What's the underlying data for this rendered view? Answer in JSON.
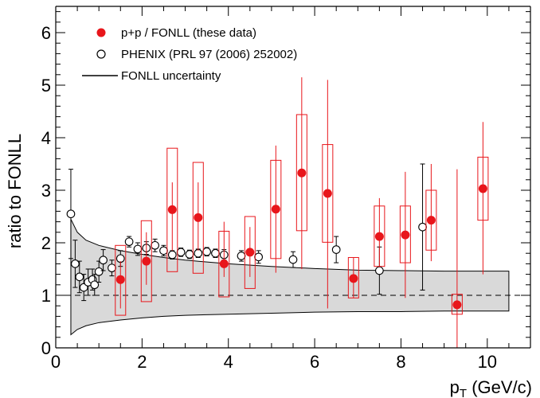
{
  "chart_data": {
    "type": "scatter",
    "xlabel": {
      "main": "p",
      "sub": "T",
      "rest": " (GeV/c)"
    },
    "ylabel": "ratio to FONLL",
    "xlim": [
      0,
      11
    ],
    "ylim": [
      0,
      6.5
    ],
    "x_ticks": [
      "0",
      "2",
      "4",
      "6",
      "8",
      "10"
    ],
    "y_ticks": [
      "0",
      "1",
      "2",
      "3",
      "4",
      "5",
      "6"
    ],
    "reference_line_y": 1,
    "colors": {
      "data": "#e8161b",
      "phenix": "#000000",
      "band": "#d9d9d9",
      "box": "#e8161b"
    },
    "legend": {
      "position": "top-left",
      "entries": [
        {
          "label": "p+p / FONLL (these data)",
          "marker": "filled-circle-red"
        },
        {
          "label": "PHENIX (PRL 97 (2006) 252002)",
          "marker": "open-circle-black"
        },
        {
          "label": "FONLL uncertainty",
          "marker": "line-black"
        }
      ]
    },
    "band": {
      "x": [
        0.35,
        0.5,
        0.7,
        1.0,
        1.5,
        2.0,
        2.5,
        3.0,
        4.0,
        5.0,
        6.0,
        7.0,
        8.0,
        9.0,
        10.5
      ],
      "upper": [
        2.45,
        2.2,
        2.05,
        1.95,
        1.85,
        1.78,
        1.72,
        1.67,
        1.6,
        1.55,
        1.51,
        1.48,
        1.47,
        1.46,
        1.46
      ],
      "lower": [
        0.25,
        0.35,
        0.42,
        0.48,
        0.53,
        0.57,
        0.6,
        0.62,
        0.64,
        0.66,
        0.68,
        0.69,
        0.69,
        0.7,
        0.7
      ]
    },
    "series": [
      {
        "name": "p+p / FONLL (these data)",
        "points": [
          {
            "x": 1.5,
            "y": 1.3,
            "stat_lo": 0.75,
            "stat_hi": 1.65,
            "sys_lo": 0.62,
            "sys_hi": 1.95
          },
          {
            "x": 2.1,
            "y": 1.65,
            "stat_lo": 1.2,
            "stat_hi": 2.2,
            "sys_lo": 0.88,
            "sys_hi": 2.42
          },
          {
            "x": 2.7,
            "y": 2.63,
            "stat_lo": 1.85,
            "stat_hi": 3.15,
            "sys_lo": 1.45,
            "sys_hi": 3.8
          },
          {
            "x": 3.3,
            "y": 2.48,
            "stat_lo": 1.85,
            "stat_hi": 3.15,
            "sys_lo": 1.42,
            "sys_hi": 3.53
          },
          {
            "x": 3.9,
            "y": 1.6,
            "stat_lo": 1.35,
            "stat_hi": 2.4,
            "sys_lo": 0.97,
            "sys_hi": 2.22
          },
          {
            "x": 4.5,
            "y": 1.82,
            "stat_lo": 1.35,
            "stat_hi": 2.3,
            "sys_lo": 1.13,
            "sys_hi": 2.5
          },
          {
            "x": 5.1,
            "y": 2.64,
            "stat_lo": 1.43,
            "stat_hi": 3.85,
            "sys_lo": 1.7,
            "sys_hi": 3.57
          },
          {
            "x": 5.7,
            "y": 3.33,
            "stat_lo": 1.5,
            "stat_hi": 5.15,
            "sys_lo": 2.23,
            "sys_hi": 4.44
          },
          {
            "x": 6.3,
            "y": 2.94,
            "stat_lo": 0.75,
            "stat_hi": 5.1,
            "sys_lo": 2.01,
            "sys_hi": 3.87
          },
          {
            "x": 6.9,
            "y": 1.32,
            "stat_lo": 0.95,
            "stat_hi": 1.72,
            "sys_lo": 0.95,
            "sys_hi": 1.72
          },
          {
            "x": 7.5,
            "y": 2.12,
            "stat_lo": 1.55,
            "stat_hi": 2.85,
            "sys_lo": 1.55,
            "sys_hi": 2.7
          },
          {
            "x": 8.1,
            "y": 2.15,
            "stat_lo": 0.95,
            "stat_hi": 3.35,
            "sys_lo": 1.62,
            "sys_hi": 2.7
          },
          {
            "x": 8.7,
            "y": 2.43,
            "stat_lo": 1.65,
            "stat_hi": 3.5,
            "sys_lo": 1.86,
            "sys_hi": 3.0
          },
          {
            "x": 9.3,
            "y": 0.82,
            "stat_lo": 0.0,
            "stat_hi": 3.4,
            "sys_lo": 0.64,
            "sys_hi": 1.02
          },
          {
            "x": 9.9,
            "y": 3.03,
            "stat_lo": 1.4,
            "stat_hi": 4.3,
            "sys_lo": 2.43,
            "sys_hi": 3.63
          }
        ]
      },
      {
        "name": "PHENIX (PRL 97 (2006) 252002)",
        "points": [
          {
            "x": 0.35,
            "y": 2.55,
            "err": 0.85
          },
          {
            "x": 0.45,
            "y": 1.6,
            "err": 0.45
          },
          {
            "x": 0.55,
            "y": 1.35,
            "err": 0.3
          },
          {
            "x": 0.65,
            "y": 1.15,
            "err": 0.25
          },
          {
            "x": 0.75,
            "y": 1.25,
            "err": 0.25
          },
          {
            "x": 0.85,
            "y": 1.3,
            "err": 0.2
          },
          {
            "x": 0.9,
            "y": 1.2,
            "err": 0.2
          },
          {
            "x": 1.0,
            "y": 1.45,
            "err": 0.2
          },
          {
            "x": 1.1,
            "y": 1.67,
            "err": 0.2
          },
          {
            "x": 1.3,
            "y": 1.52,
            "err": 0.15
          },
          {
            "x": 1.5,
            "y": 1.7,
            "err": 0.15
          },
          {
            "x": 1.7,
            "y": 2.02,
            "err": 0.1
          },
          {
            "x": 1.9,
            "y": 1.88,
            "err": 0.12
          },
          {
            "x": 2.1,
            "y": 1.9,
            "err": 0.12
          },
          {
            "x": 2.3,
            "y": 1.95,
            "err": 0.12
          },
          {
            "x": 2.5,
            "y": 1.85,
            "err": 0.1
          },
          {
            "x": 2.7,
            "y": 1.77,
            "err": 0.08
          },
          {
            "x": 2.9,
            "y": 1.82,
            "err": 0.08
          },
          {
            "x": 3.1,
            "y": 1.78,
            "err": 0.08
          },
          {
            "x": 3.3,
            "y": 1.8,
            "err": 0.08
          },
          {
            "x": 3.5,
            "y": 1.83,
            "err": 0.08
          },
          {
            "x": 3.7,
            "y": 1.8,
            "err": 0.08
          },
          {
            "x": 3.9,
            "y": 1.77,
            "err": 0.1
          },
          {
            "x": 4.3,
            "y": 1.75,
            "err": 0.1
          },
          {
            "x": 4.7,
            "y": 1.73,
            "err": 0.12
          },
          {
            "x": 5.5,
            "y": 1.68,
            "err": 0.15
          },
          {
            "x": 6.5,
            "y": 1.87,
            "err": 0.25
          },
          {
            "x": 7.5,
            "y": 1.47,
            "err": 0.45
          },
          {
            "x": 8.5,
            "y": 2.3,
            "err": 1.2
          }
        ]
      }
    ]
  }
}
